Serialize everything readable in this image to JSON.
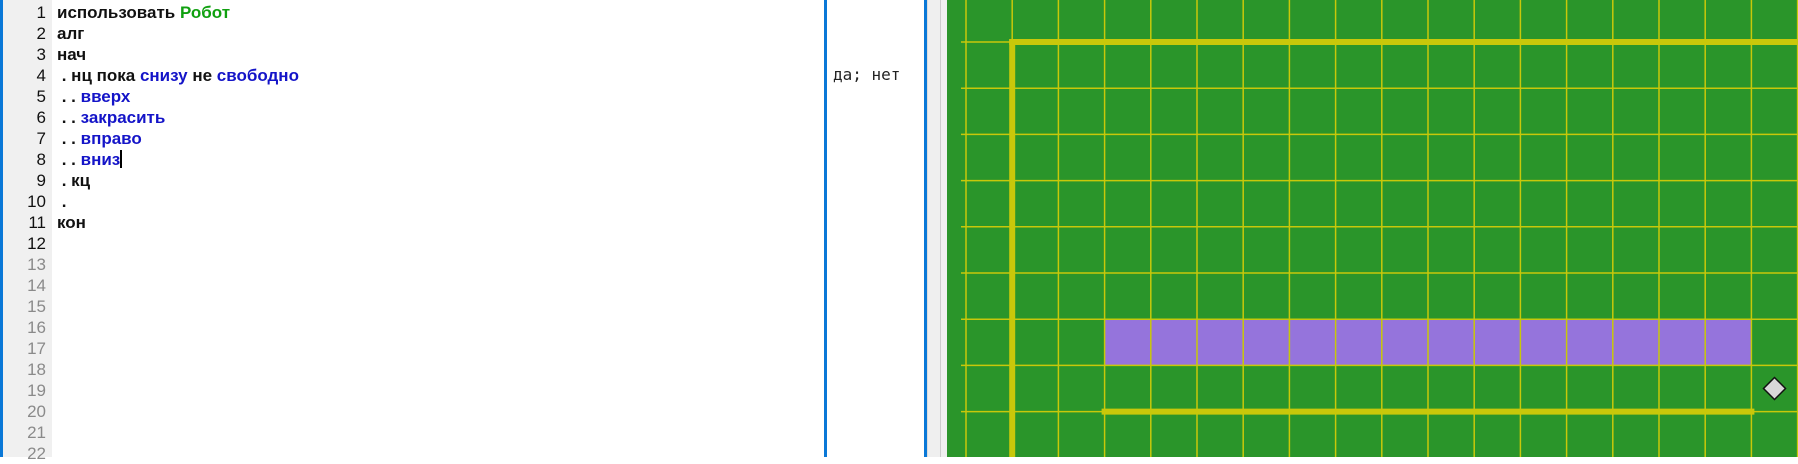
{
  "editor": {
    "line_numbers": [
      "1",
      "2",
      "3",
      "4",
      "5",
      "6",
      "7",
      "8",
      "9",
      "10",
      "11",
      "12",
      "13",
      "14",
      "15",
      "16",
      "17",
      "18",
      "19",
      "20",
      "21",
      "22"
    ],
    "lines": [
      [
        {
          "t": "использовать ",
          "c": "plain"
        },
        {
          "t": "Робот",
          "c": "green"
        }
      ],
      [
        {
          "t": "алг",
          "c": "plain"
        }
      ],
      [
        {
          "t": "нач",
          "c": "plain"
        }
      ],
      [
        {
          "t": " . нц пока ",
          "c": "plain"
        },
        {
          "t": "снизу",
          "c": "blue"
        },
        {
          "t": " не ",
          "c": "plain"
        },
        {
          "t": "свободно",
          "c": "blue"
        }
      ],
      [
        {
          "t": " . . ",
          "c": "plain"
        },
        {
          "t": "вверх",
          "c": "blue"
        }
      ],
      [
        {
          "t": " . . ",
          "c": "plain"
        },
        {
          "t": "закрасить",
          "c": "blue"
        }
      ],
      [
        {
          "t": " . . ",
          "c": "plain"
        },
        {
          "t": "вправо",
          "c": "blue"
        }
      ],
      [
        {
          "t": " . . ",
          "c": "plain"
        },
        {
          "t": "вниз",
          "c": "blue"
        }
      ],
      [
        {
          "t": " . кц",
          "c": "plain"
        }
      ],
      [
        {
          "t": " .",
          "c": "plain"
        }
      ],
      [
        {
          "t": "кон",
          "c": "plain"
        }
      ]
    ],
    "caret_line": 8
  },
  "margin": {
    "line4_value": "да; нет"
  },
  "robot_field": {
    "colors": {
      "background": "#2a952a",
      "grid": "#c8c80a",
      "wall": "#c8c80a",
      "painted": "#9574dc",
      "robot": "#d8d8d8"
    },
    "painted_cells": {
      "row": 7,
      "from_col": 3,
      "to_col": 16
    },
    "robot": {
      "row": 8,
      "col": 17
    },
    "walls": [
      {
        "orientation": "horizontal",
        "row_line": 1,
        "from_col": 1,
        "to_col": 19
      },
      {
        "orientation": "vertical",
        "col_line": 1,
        "from_row": 1,
        "to_row": 10
      },
      {
        "orientation": "horizontal",
        "row_line": 9,
        "from_col": 3,
        "to_col": 17
      }
    ]
  }
}
